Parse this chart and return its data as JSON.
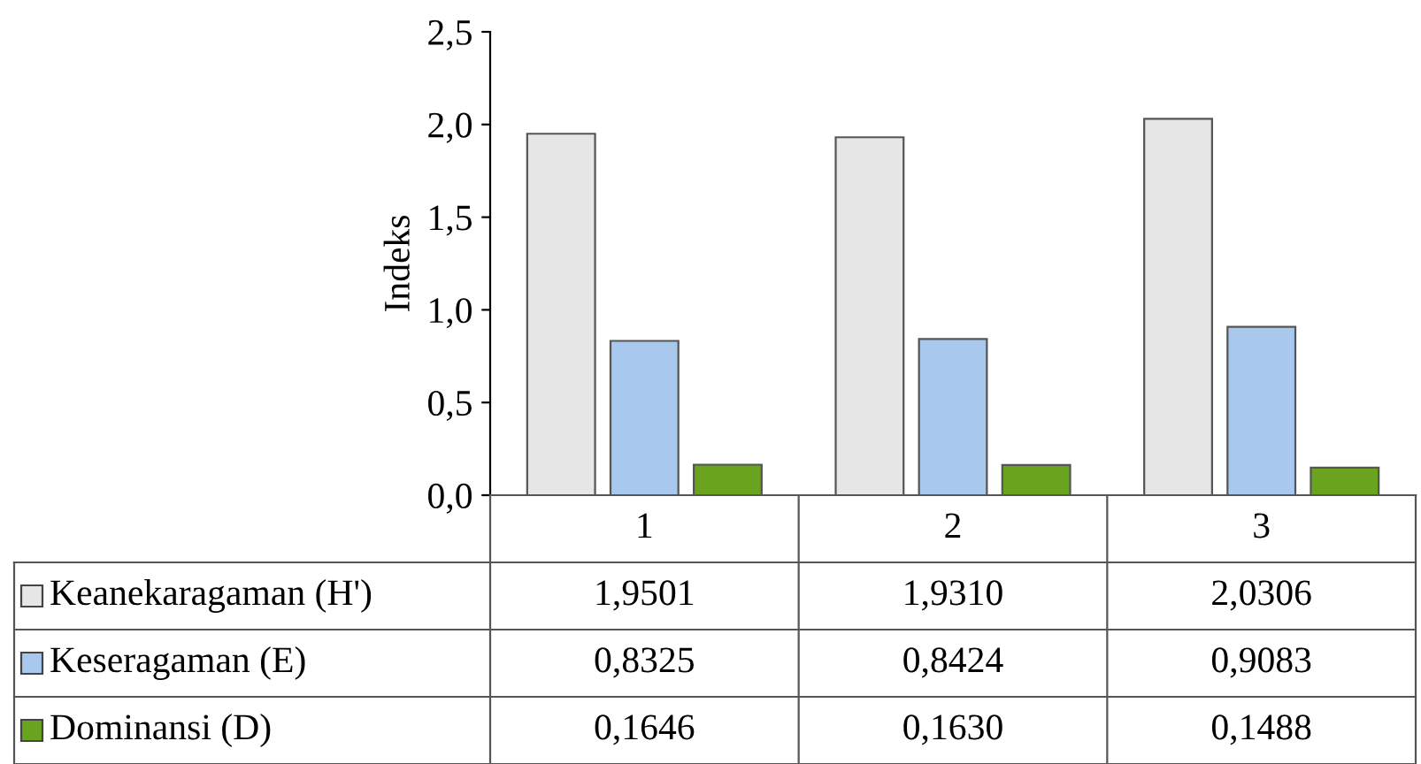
{
  "chart_data": {
    "type": "bar",
    "ylabel": "Indeks",
    "categories": [
      "1",
      "2",
      "3"
    ],
    "series": [
      {
        "name": "Keanekaragaman (H')",
        "color": "#e6e6e6",
        "values": [
          1.9501,
          1.931,
          2.0306
        ],
        "value_labels": [
          "1,9501",
          "1,9310",
          "2,0306"
        ]
      },
      {
        "name": "Keseragaman (E)",
        "color": "#a8c8ee",
        "values": [
          0.8325,
          0.8424,
          0.9083
        ],
        "value_labels": [
          "0,8325",
          "0,8424",
          "0,9083"
        ]
      },
      {
        "name": "Dominansi (D)",
        "color": "#6aa41e",
        "values": [
          0.1646,
          0.163,
          0.1488
        ],
        "value_labels": [
          "0,1646",
          "0,1630",
          "0,1488"
        ]
      }
    ],
    "ylim": [
      0,
      2.5
    ],
    "yticks": [
      {
        "value": 0,
        "label": "0,0"
      },
      {
        "value": 0.5,
        "label": "0,5"
      },
      {
        "value": 1,
        "label": "1,0"
      },
      {
        "value": 1.5,
        "label": "1,5"
      },
      {
        "value": 2,
        "label": "2,0"
      },
      {
        "value": 2.5,
        "label": "2,5"
      }
    ],
    "grid": false,
    "legend": "bottom left"
  }
}
